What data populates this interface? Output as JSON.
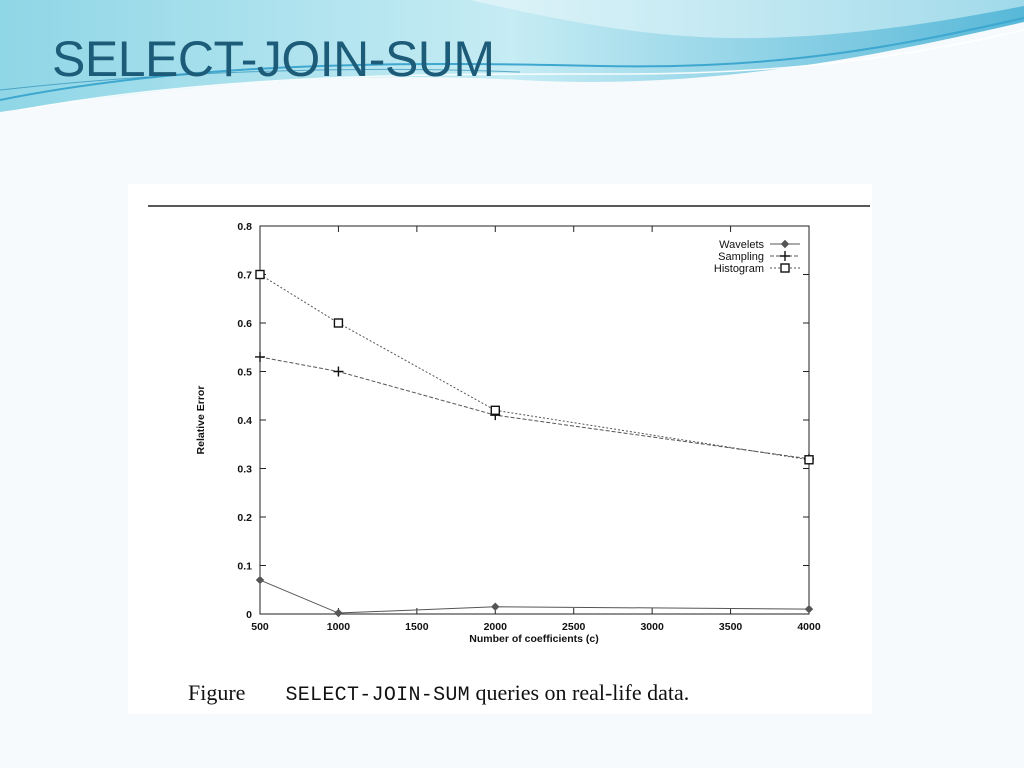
{
  "slide": {
    "title": "SELECT-JOIN-SUM"
  },
  "caption": {
    "label": "Figure",
    "mono_text": "SELECT-JOIN-SUM",
    "rest_text": " queries on real-life data."
  },
  "chart_data": {
    "type": "line",
    "xlabel": "Number of coefficients (c)",
    "ylabel": "Relative Error",
    "xlim": [
      500,
      4000
    ],
    "ylim": [
      0,
      0.8
    ],
    "x_ticks": [
      500,
      1000,
      1500,
      2000,
      2500,
      3000,
      3500,
      4000
    ],
    "y_ticks": [
      0,
      0.1,
      0.2,
      0.3,
      0.4,
      0.5,
      0.6,
      0.7,
      0.8
    ],
    "x": [
      500,
      1000,
      2000,
      4000
    ],
    "grid": false,
    "legend_position": "top-right",
    "series": [
      {
        "name": "Wavelets",
        "values": [
          0.07,
          0.002,
          0.015,
          0.01
        ],
        "marker": "diamond",
        "line_style": "solid",
        "color": "#555555"
      },
      {
        "name": "Sampling",
        "values": [
          0.53,
          0.5,
          0.41,
          0.32
        ],
        "marker": "plus",
        "line_style": "dashed",
        "color": "#555555"
      },
      {
        "name": "Histogram",
        "values": [
          0.7,
          0.6,
          0.42,
          0.318
        ],
        "marker": "square",
        "line_style": "dotted",
        "color": "#555555"
      }
    ]
  }
}
